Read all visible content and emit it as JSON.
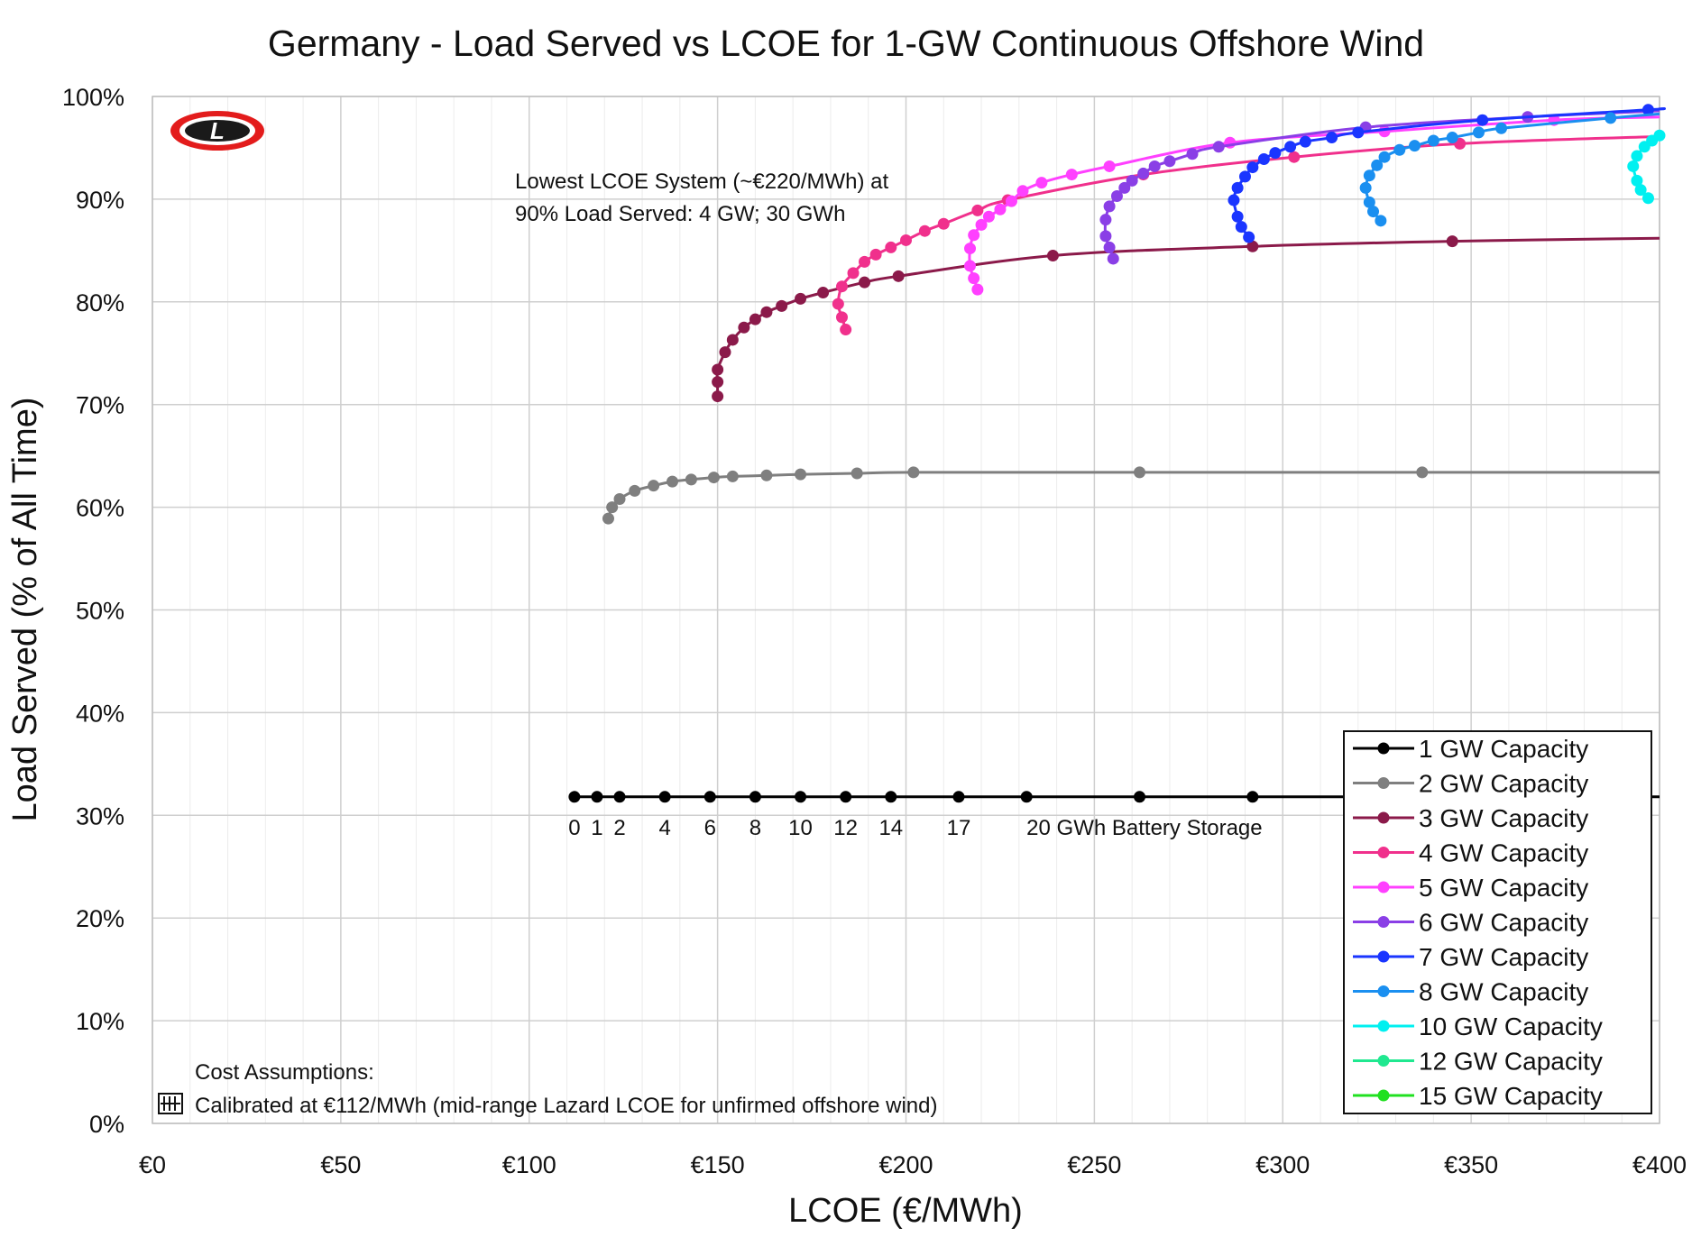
{
  "chart_data": {
    "type": "line",
    "title": "Germany - Load Served vs LCOE for 1-GW Continuous Offshore Wind",
    "xlabel": "LCOE (€/MWh)",
    "ylabel": "Load Served (% of All Time)",
    "xlim": [
      0,
      400
    ],
    "ylim": [
      0,
      100
    ],
    "x_ticks": [
      {
        "value": 0,
        "label": "€0"
      },
      {
        "value": 50,
        "label": "€50"
      },
      {
        "value": 100,
        "label": "€100"
      },
      {
        "value": 150,
        "label": "€150"
      },
      {
        "value": 200,
        "label": "€200"
      },
      {
        "value": 250,
        "label": "€250"
      },
      {
        "value": 300,
        "label": "€300"
      },
      {
        "value": 350,
        "label": "€350"
      },
      {
        "value": 400,
        "label": "€400"
      }
    ],
    "y_ticks": [
      {
        "value": 0,
        "label": "0%"
      },
      {
        "value": 10,
        "label": "10%"
      },
      {
        "value": 20,
        "label": "20%"
      },
      {
        "value": 30,
        "label": "30%"
      },
      {
        "value": 40,
        "label": "40%"
      },
      {
        "value": 50,
        "label": "50%"
      },
      {
        "value": 60,
        "label": "60%"
      },
      {
        "value": 70,
        "label": "70%"
      },
      {
        "value": 80,
        "label": "80%"
      },
      {
        "value": 90,
        "label": "90%"
      },
      {
        "value": 100,
        "label": "100%"
      }
    ],
    "grid": true,
    "legend_position": "bottom-right",
    "series": [
      {
        "name": "1 GW Capacity",
        "color": "#000000",
        "points": [
          [
            112,
            31.8
          ],
          [
            118,
            31.8
          ],
          [
            124,
            31.8
          ],
          [
            136,
            31.8
          ],
          [
            148,
            31.8
          ],
          [
            160,
            31.8
          ],
          [
            172,
            31.8
          ],
          [
            184,
            31.8
          ],
          [
            196,
            31.8
          ],
          [
            214,
            31.8
          ],
          [
            232,
            31.8
          ],
          [
            262,
            31.8
          ],
          [
            292,
            31.8
          ]
        ],
        "extend_to": [
          400,
          31.8
        ]
      },
      {
        "name": "2 GW Capacity",
        "color": "#7f7f7f",
        "points": [
          [
            121,
            58.9
          ],
          [
            122,
            60.0
          ],
          [
            124,
            60.8
          ],
          [
            128,
            61.6
          ],
          [
            133,
            62.1
          ],
          [
            138,
            62.5
          ],
          [
            143,
            62.7
          ],
          [
            149,
            62.9
          ],
          [
            154,
            63.0
          ],
          [
            163,
            63.1
          ],
          [
            172,
            63.2
          ],
          [
            187,
            63.3
          ],
          [
            202,
            63.4
          ],
          [
            262,
            63.4
          ],
          [
            337,
            63.4
          ]
        ],
        "extend_to": [
          400,
          63.4
        ]
      },
      {
        "name": "3 GW Capacity",
        "color": "#8b1a4a",
        "points": [
          [
            150,
            70.8
          ],
          [
            150,
            72.2
          ],
          [
            150,
            73.4
          ],
          [
            152,
            75.1
          ],
          [
            154,
            76.3
          ],
          [
            157,
            77.5
          ],
          [
            160,
            78.3
          ],
          [
            163,
            79.0
          ],
          [
            167,
            79.6
          ],
          [
            172,
            80.3
          ],
          [
            178,
            80.9
          ],
          [
            189,
            81.9
          ],
          [
            198,
            82.5
          ],
          [
            239,
            84.5
          ],
          [
            292,
            85.4
          ],
          [
            345,
            85.9
          ]
        ],
        "extend_to": [
          400,
          86.2
        ]
      },
      {
        "name": "4 GW Capacity",
        "color": "#f0308c",
        "points": [
          [
            184,
            77.3
          ],
          [
            183,
            78.5
          ],
          [
            182,
            79.8
          ],
          [
            183,
            81.5
          ],
          [
            186,
            82.8
          ],
          [
            189,
            83.9
          ],
          [
            192,
            84.6
          ],
          [
            196,
            85.3
          ],
          [
            200,
            86.0
          ],
          [
            205,
            86.9
          ],
          [
            210,
            87.6
          ],
          [
            219,
            88.9
          ],
          [
            227,
            89.9
          ],
          [
            263,
            92.4
          ],
          [
            303,
            94.1
          ],
          [
            347,
            95.4
          ]
        ],
        "extend_to": [
          400,
          96.1
        ]
      },
      {
        "name": "5 GW Capacity",
        "color": "#ff40ff",
        "points": [
          [
            219,
            81.2
          ],
          [
            218,
            82.3
          ],
          [
            217,
            83.5
          ],
          [
            217,
            85.2
          ],
          [
            218,
            86.5
          ],
          [
            220,
            87.5
          ],
          [
            222,
            88.3
          ],
          [
            225,
            89.0
          ],
          [
            228,
            89.8
          ],
          [
            231,
            90.8
          ],
          [
            236,
            91.6
          ],
          [
            244,
            92.4
          ],
          [
            254,
            93.2
          ],
          [
            286,
            95.5
          ],
          [
            327,
            96.6
          ],
          [
            372,
            97.7
          ]
        ],
        "extend_to": [
          400,
          98.0
        ]
      },
      {
        "name": "6 GW Capacity",
        "color": "#8a3fe6",
        "points": [
          [
            255,
            84.2
          ],
          [
            254,
            85.3
          ],
          [
            253,
            86.4
          ],
          [
            253,
            88.0
          ],
          [
            254,
            89.3
          ],
          [
            256,
            90.3
          ],
          [
            258,
            91.1
          ],
          [
            260,
            91.8
          ],
          [
            263,
            92.5
          ],
          [
            266,
            93.2
          ],
          [
            270,
            93.7
          ],
          [
            276,
            94.4
          ],
          [
            283,
            95.1
          ],
          [
            322,
            97.0
          ],
          [
            365,
            98.0
          ]
        ],
        "extend_to": [
          400,
          98.6
        ]
      },
      {
        "name": "7 GW Capacity",
        "color": "#1a35ff",
        "points": [
          [
            291,
            86.3
          ],
          [
            289,
            87.3
          ],
          [
            288,
            88.3
          ],
          [
            287,
            89.9
          ],
          [
            288,
            91.1
          ],
          [
            290,
            92.2
          ],
          [
            292,
            93.1
          ],
          [
            295,
            93.9
          ],
          [
            298,
            94.5
          ],
          [
            302,
            95.1
          ],
          [
            306,
            95.6
          ],
          [
            313,
            96.0
          ],
          [
            320,
            96.5
          ],
          [
            353,
            97.7
          ],
          [
            397,
            98.7
          ]
        ],
        "extend_to": [
          400,
          98.8
        ]
      },
      {
        "name": "8 GW Capacity",
        "color": "#1a8ff0",
        "points": [
          [
            326,
            87.9
          ],
          [
            324,
            88.8
          ],
          [
            323,
            89.7
          ],
          [
            322,
            91.1
          ],
          [
            323,
            92.3
          ],
          [
            325,
            93.3
          ],
          [
            327,
            94.1
          ],
          [
            331,
            94.8
          ],
          [
            335,
            95.2
          ],
          [
            340,
            95.7
          ],
          [
            345,
            96.0
          ],
          [
            352,
            96.5
          ],
          [
            358,
            96.9
          ],
          [
            387,
            97.9
          ]
        ],
        "extend_to": [
          400,
          98.3
        ]
      },
      {
        "name": "10 GW Capacity",
        "color": "#00f0f0",
        "points": [
          [
            397,
            90.1
          ],
          [
            395,
            90.9
          ],
          [
            394,
            91.8
          ],
          [
            393,
            93.2
          ],
          [
            394,
            94.2
          ],
          [
            396,
            95.1
          ],
          [
            398,
            95.7
          ],
          [
            400,
            96.2
          ]
        ],
        "extend_to": null
      },
      {
        "name": "12 GW Capacity",
        "color": "#20e890",
        "points": [],
        "extend_to": null
      },
      {
        "name": "15 GW Capacity",
        "color": "#20e020",
        "points": [],
        "extend_to": null
      }
    ],
    "storage_labels": [
      {
        "x": 112,
        "label": "0"
      },
      {
        "x": 118,
        "label": "1"
      },
      {
        "x": 124,
        "label": "2"
      },
      {
        "x": 136,
        "label": "4"
      },
      {
        "x": 148,
        "label": "6"
      },
      {
        "x": 160,
        "label": "8"
      },
      {
        "x": 172,
        "label": "10"
      },
      {
        "x": 184,
        "label": "12"
      },
      {
        "x": 196,
        "label": "14"
      },
      {
        "x": 214,
        "label": "17"
      },
      {
        "x": 232,
        "label": "20 GWh Battery Storage"
      }
    ],
    "annotations": {
      "lowest_line1": "Lowest LCOE System (~€220/MWh) at",
      "lowest_line2": "90% Load Served: 4 GW; 30 GWh",
      "cost_line1": "Cost Assumptions:",
      "cost_line2": "Calibrated at €112/MWh (mid-range Lazard LCOE for unfirmed offshore wind)"
    },
    "logo_letter": "L"
  }
}
